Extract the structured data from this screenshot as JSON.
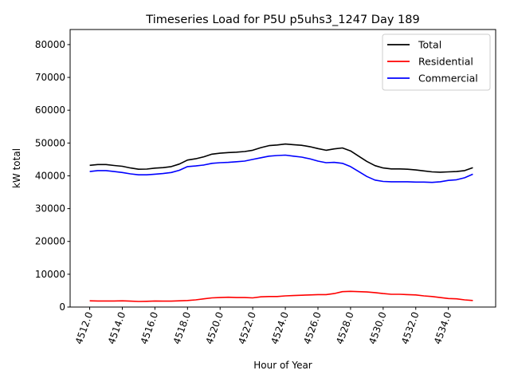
{
  "chart_data": {
    "type": "line",
    "title": "Timeseries Load for P5U p5uhs3_1247  Day 189",
    "xlabel": "Hour of Year",
    "ylabel": "kW total",
    "xlim": [
      4510.8,
      4536.9
    ],
    "ylim": [
      0,
      84600
    ],
    "xticks": [
      4512,
      4514,
      4516,
      4518,
      4520,
      4522,
      4524,
      4526,
      4528,
      4530,
      4532,
      4534
    ],
    "xtick_labels": [
      "4512.0",
      "4514.0",
      "4516.0",
      "4518.0",
      "4520.0",
      "4522.0",
      "4524.0",
      "4526.0",
      "4528.0",
      "4530.0",
      "4532.0",
      "4534.0"
    ],
    "yticks": [
      0,
      10000,
      20000,
      30000,
      40000,
      50000,
      60000,
      70000,
      80000
    ],
    "ytick_labels": [
      "0",
      "10000",
      "20000",
      "30000",
      "40000",
      "50000",
      "60000",
      "70000",
      "80000"
    ],
    "grid": false,
    "legend_position": "top-right",
    "x_start": 4512,
    "x_step": 0.5,
    "series": [
      {
        "name": "Total",
        "color": "#000000",
        "values": [
          43200,
          43450,
          43450,
          43150,
          42900,
          42400,
          42000,
          42050,
          42350,
          42500,
          42800,
          43600,
          44800,
          45200,
          45800,
          46600,
          46900,
          47100,
          47200,
          47400,
          47800,
          48600,
          49200,
          49400,
          49700,
          49500,
          49300,
          48900,
          48300,
          47800,
          48200,
          48500,
          47600,
          46000,
          44400,
          43100,
          42400,
          42100,
          42100,
          42000,
          41800,
          41500,
          41200,
          41100,
          41200,
          41300,
          41600,
          42500
        ]
      },
      {
        "name": "Residential",
        "color": "#ff0000",
        "values": [
          1900,
          1850,
          1850,
          1850,
          1900,
          1800,
          1700,
          1750,
          1850,
          1800,
          1800,
          1900,
          2000,
          2200,
          2500,
          2800,
          2900,
          3000,
          2900,
          2900,
          2800,
          3100,
          3200,
          3200,
          3400,
          3500,
          3600,
          3700,
          3800,
          3800,
          4100,
          4700,
          4800,
          4700,
          4600,
          4400,
          4100,
          3900,
          3900,
          3800,
          3700,
          3400,
          3200,
          2900,
          2600,
          2500,
          2200,
          2000
        ]
      },
      {
        "name": "Commercial",
        "color": "#0000ff",
        "values": [
          41300,
          41600,
          41600,
          41300,
          41000,
          40600,
          40300,
          40300,
          40500,
          40700,
          41000,
          41700,
          42800,
          43000,
          43300,
          43800,
          44000,
          44100,
          44300,
          44500,
          45000,
          45500,
          46000,
          46200,
          46300,
          46000,
          45700,
          45200,
          44500,
          44000,
          44100,
          43800,
          42800,
          41300,
          39800,
          38700,
          38300,
          38200,
          38200,
          38200,
          38100,
          38100,
          38000,
          38200,
          38600,
          38800,
          39400,
          40500
        ]
      }
    ]
  }
}
